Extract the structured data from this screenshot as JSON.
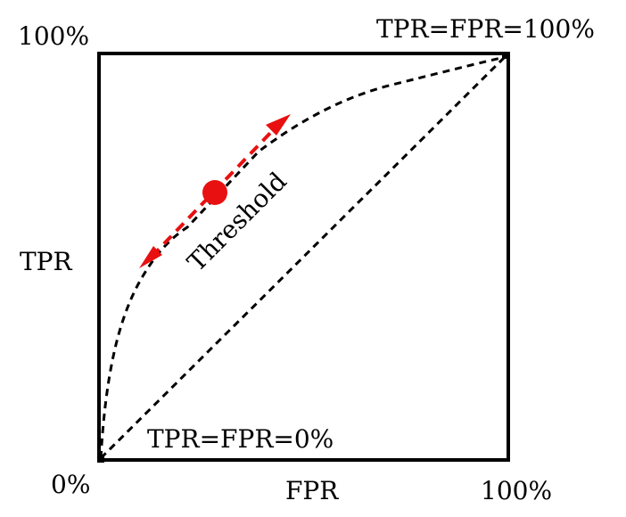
{
  "diagram": {
    "labels": {
      "y_top": "100%",
      "y_axis": "TPR",
      "origin": "0%",
      "x_axis": "FPR",
      "x_right": "100%",
      "top_right_point": "TPR=FPR=100%",
      "origin_point": "TPR=FPR=0%",
      "threshold": "Threshold"
    },
    "colors": {
      "frame": "#000000",
      "curves": "#000000",
      "threshold": "#e81010",
      "background": "#ffffff"
    }
  }
}
